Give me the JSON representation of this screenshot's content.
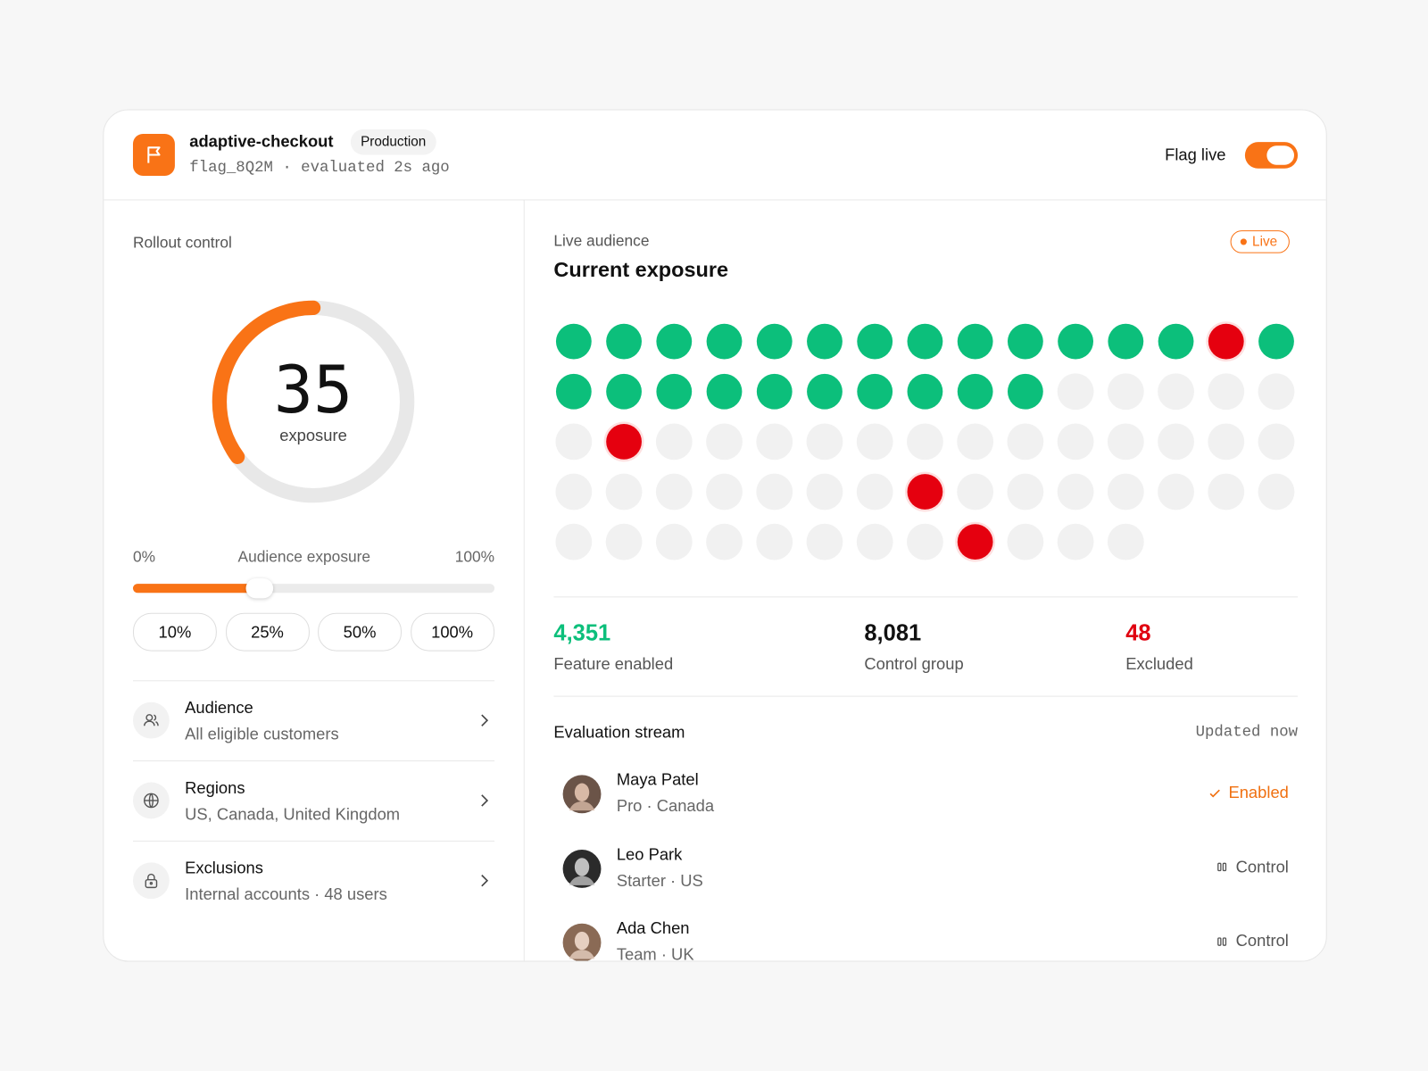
{
  "header": {
    "title": "adaptive-checkout",
    "badge": "Production",
    "subtitle": "flag_8Q2M · evaluated 2s ago",
    "toggle_label": "Flag live"
  },
  "rollout": {
    "title": "Rollout control",
    "gauge": {
      "value": 35,
      "label": "exposure"
    },
    "slider": {
      "min_label": "0%",
      "label": "Audience exposure",
      "max_label": "100%"
    },
    "presets": [
      "10%",
      "25%",
      "50%",
      "100%"
    ],
    "rows": [
      {
        "title": "Audience",
        "subtitle": "All eligible customers"
      },
      {
        "title": "Regions",
        "subtitle": "US, Canada, United Kingdom"
      },
      {
        "title": "Exclusions",
        "subtitle": "Internal accounts · 48 users"
      }
    ]
  },
  "audience": {
    "eyebrow": "Live audience",
    "title": "Current exposure",
    "badge": "Live",
    "stats": [
      {
        "value": "4,351",
        "label": "Feature enabled"
      },
      {
        "value": "8,081",
        "label": "Control group"
      },
      {
        "value": "48",
        "label": "Excluded"
      }
    ],
    "stream": {
      "title": "Evaluation stream",
      "updated": "Updated now",
      "rows": [
        {
          "name": "Maya Patel",
          "detail": "Pro · Canada",
          "status": "Enabled"
        },
        {
          "name": "Leo Park",
          "detail": "Starter · US",
          "status": "Control"
        },
        {
          "name": "Ada Chen",
          "detail": "Team · UK",
          "status": "Control"
        }
      ]
    }
  }
}
